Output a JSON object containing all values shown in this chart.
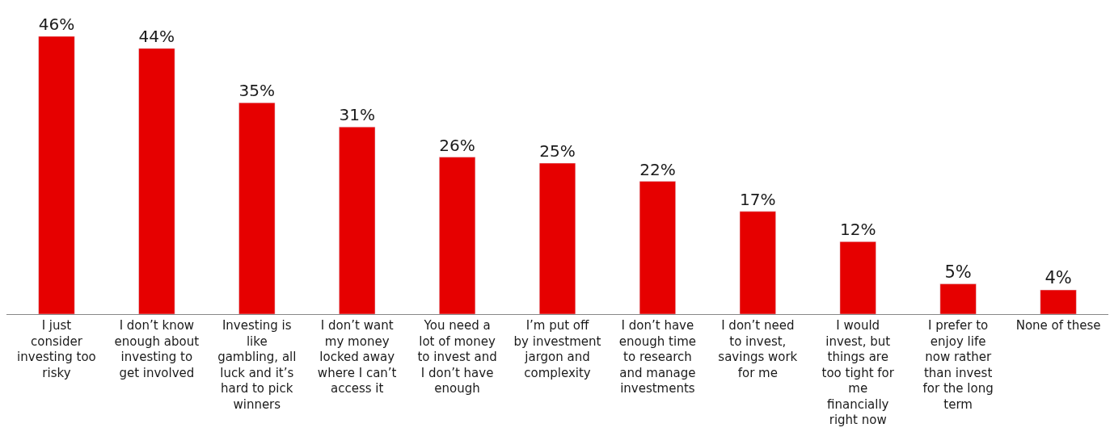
{
  "chart_data": {
    "type": "bar",
    "categories": [
      "I just consider investing too risky",
      "I don’t know enough about investing to get involved",
      "Investing is like gambling, all luck and it’s hard to pick winners",
      "I don’t want my money locked away where I can’t access it",
      "You need a lot of money to invest and I don’t have enough",
      "I’m put off by investment jargon and complexity",
      "I don’t have enough time to research and manage investments",
      "I don’t need to invest, savings work for me",
      "I would invest, but things are too tight for me financially right now",
      "I prefer to enjoy life now rather than invest for the long term",
      "None of these"
    ],
    "values": [
      46,
      44,
      35,
      31,
      26,
      25,
      22,
      17,
      12,
      5,
      4
    ],
    "value_labels": [
      "46%",
      "44%",
      "35%",
      "31%",
      "26%",
      "25%",
      "22%",
      "17%",
      "12%",
      "5%",
      "4%"
    ],
    "color": "#e60000",
    "legend": false
  }
}
